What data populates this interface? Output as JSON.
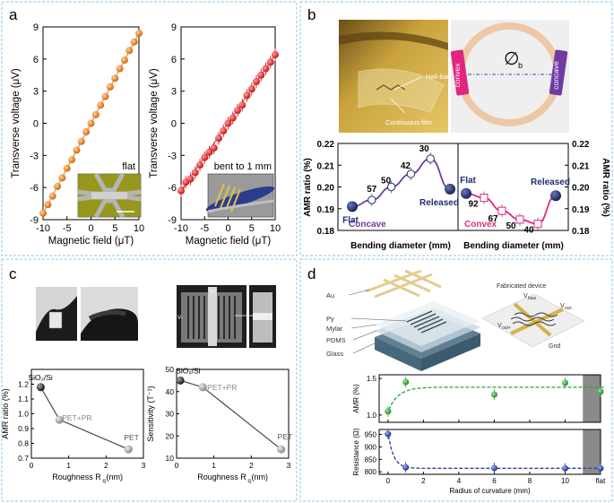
{
  "panels": {
    "a": {
      "letter": "a"
    },
    "b": {
      "letter": "b",
      "photo_labels": {
        "hallbar": "Hall-bar",
        "film": "Continuous film"
      },
      "ring_labels": {
        "convex": "convex",
        "concave": "concave",
        "phi": "∅",
        "phi_sub": "b"
      }
    },
    "c": {
      "letter": "c",
      "photo_labels": {
        "v_plus": "V+",
        "v_minus": "V-"
      }
    },
    "d": {
      "letter": "d",
      "stack_labels": [
        "Au",
        "Py",
        "Mylar",
        "PDMS",
        "Glass"
      ],
      "device_labels": {
        "title": "Fabricated device",
        "vbias": "V",
        "vbias_sub": "bias",
        "vout_plus": "V",
        "vout_plus_sub": "out+",
        "vout_minus": "V",
        "vout_minus_sub": "out-",
        "gnd": "Gnd"
      }
    }
  },
  "colors": {
    "orange": "#e0801c",
    "red": "#dd2a2a",
    "navy": "#1e2d6e",
    "purple": "#6f3ba3",
    "pink": "#e0267f",
    "green": "#2fa234",
    "blue": "#2d3ea8",
    "border": "#8ec4ea",
    "ring": "#eec8a6",
    "gray": "#7f7f7f"
  },
  "chart_data": [
    {
      "type": "scatter",
      "id": "a-flat",
      "xlabel": "Magnetic field (μT)",
      "ylabel": "Transverse voltage (μV)",
      "xlim": [
        -10,
        10
      ],
      "ylim": [
        -9,
        9
      ],
      "xticks": [
        "-10",
        "-5",
        "0",
        "5",
        "10"
      ],
      "yticks": [
        "9",
        "6",
        "3",
        "0",
        "-3",
        "-6",
        "-9"
      ],
      "x": [
        -10,
        -9,
        -8,
        -7,
        -6,
        -5,
        -4,
        -3,
        -2,
        -1,
        0,
        1,
        2,
        3,
        4,
        5,
        6,
        7,
        8,
        9,
        10
      ],
      "y": [
        -8.4,
        -7.6,
        -6.8,
        -5.9,
        -5.1,
        -4.2,
        -3.4,
        -2.5,
        -1.7,
        -0.8,
        0,
        0.8,
        1.7,
        2.5,
        3.4,
        4.2,
        5.1,
        5.9,
        6.8,
        7.6,
        8.4
      ],
      "inset_label": "flat"
    },
    {
      "type": "scatter",
      "id": "a-bent",
      "xlabel": "Magnetic field (μT)",
      "ylabel": "Transverse voltage (μV)",
      "xlim": [
        -10,
        10
      ],
      "ylim": [
        -9,
        9
      ],
      "xticks": [
        "-10",
        "-5",
        "0",
        "5",
        "10"
      ],
      "yticks": [
        "9",
        "6",
        "3",
        "0",
        "-3",
        "-6",
        "-9"
      ],
      "x": [
        -10,
        -9,
        -8,
        -7,
        -6,
        -5,
        -4,
        -3,
        -2,
        -1,
        0,
        1,
        2,
        3,
        4,
        5,
        6,
        7,
        8,
        9,
        10
      ],
      "y": [
        -6.3,
        -5.5,
        -5.2,
        -4.6,
        -3.9,
        -3.2,
        -2.7,
        -2.3,
        -1.4,
        -0.7,
        0,
        0.5,
        1.2,
        1.7,
        2.6,
        3.2,
        3.9,
        4.5,
        5.1,
        5.7,
        6.4
      ],
      "inset_label": "bent to 1 mm"
    },
    {
      "type": "line",
      "id": "b-concave",
      "xlabel": "Bending diameter (mm)",
      "ylabel": "AMR ratio (%)",
      "ylim": [
        0.18,
        0.22
      ],
      "yticks": [
        "0.22",
        "0.21",
        "0.20",
        "0.19",
        "0.18"
      ],
      "points": [
        {
          "label": "Flat",
          "y": 0.191
        },
        {
          "label": "57",
          "y": 0.194
        },
        {
          "label": "50",
          "y": 0.2
        },
        {
          "label": "42",
          "y": 0.206
        },
        {
          "label": "30",
          "y": 0.213
        },
        {
          "label": "Released",
          "y": 0.199
        }
      ],
      "annotation": "Concave"
    },
    {
      "type": "line",
      "id": "b-convex",
      "xlabel": "Bending diameter (mm)",
      "ylabel": "AMR ratio (%)",
      "ylim": [
        0.18,
        0.22
      ],
      "yticks": [
        "0.22",
        "0.21",
        "0.20",
        "0.19",
        "0.18"
      ],
      "points": [
        {
          "label": "Flat",
          "y": 0.197
        },
        {
          "label": "92",
          "y": 0.195
        },
        {
          "label": "67",
          "y": 0.189
        },
        {
          "label": "50",
          "y": 0.185
        },
        {
          "label": "40",
          "y": 0.183
        },
        {
          "label": "Released",
          "y": 0.196
        }
      ],
      "annotation": "Convex"
    },
    {
      "type": "line",
      "id": "c-amr",
      "xlabel": "Roughness R",
      "xlabel_sub": "q",
      "xlabel_unit": "(nm)",
      "ylabel": "AMR ratio (%)",
      "xlim": [
        0,
        3
      ],
      "ylim": [
        0.7,
        1.3
      ],
      "xticks": [
        "0",
        "1",
        "2",
        "3"
      ],
      "yticks": [
        "1.2",
        "1.1",
        "1.0",
        "0.9",
        "0.8",
        "0.7"
      ],
      "x": [
        0.25,
        0.75,
        2.6
      ],
      "y": [
        1.18,
        0.96,
        0.76
      ],
      "point_labels": [
        "SiO₂/Si",
        "PET+PR",
        "PET"
      ]
    },
    {
      "type": "line",
      "id": "c-sens",
      "xlabel": "Roughness R",
      "xlabel_sub": "q",
      "xlabel_unit": "(nm)",
      "ylabel": "Sensitivity (T⁻¹)",
      "xlim": [
        0,
        3
      ],
      "ylim": [
        10,
        50
      ],
      "xticks": [
        "0",
        "1",
        "2",
        "3"
      ],
      "yticks": [
        "50",
        "40",
        "30",
        "20",
        "10"
      ],
      "x": [
        0.1,
        0.7,
        2.8
      ],
      "y": [
        45,
        42,
        14
      ],
      "point_labels": [
        "SiO₂/Si",
        "PET+PR",
        "PET"
      ]
    },
    {
      "type": "scatter",
      "id": "d-amr",
      "xlabel": "",
      "ylabel": "AMR (%)",
      "xlim": [
        -0.5,
        12
      ],
      "ylim": [
        0.9,
        1.55
      ],
      "yticks": [
        "1.5",
        "1.0"
      ],
      "x": [
        0,
        1,
        6,
        10,
        12
      ],
      "y": [
        1.05,
        1.45,
        1.28,
        1.44,
        1.32
      ],
      "x_flat_index": 4
    },
    {
      "type": "scatter",
      "id": "d-res",
      "xlabel": "Radius of curvature (mm)",
      "ylabel": "Resistance (Ω)",
      "xlim": [
        -0.5,
        12
      ],
      "ylim": [
        790,
        970
      ],
      "xticks": [
        "0",
        "2",
        "4",
        "6",
        "8",
        "10",
        "flat"
      ],
      "yticks": [
        "950",
        "900",
        "850",
        "800"
      ],
      "x": [
        0,
        1,
        6,
        10,
        12
      ],
      "y": [
        952,
        818,
        815,
        814,
        814
      ],
      "x_flat_index": 4
    }
  ]
}
